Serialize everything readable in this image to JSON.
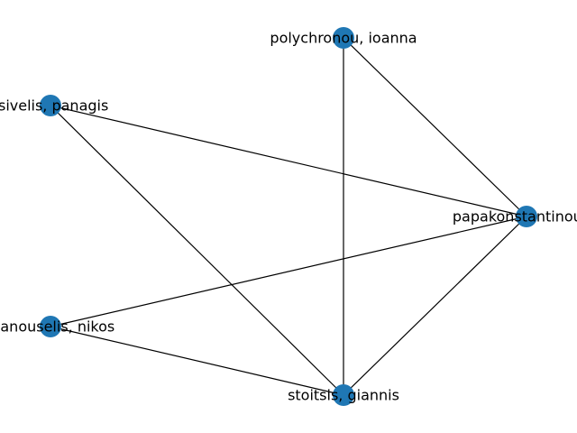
{
  "graph": {
    "node_color": "#1f77b4",
    "edge_color": "#000000",
    "nodes": [
      {
        "id": "polychronou",
        "label": "polychronou, ioanna"
      },
      {
        "id": "tsivelis",
        "label": "tsivelis, panagis"
      },
      {
        "id": "papakonstantinou",
        "label": "papakonstantinou, n"
      },
      {
        "id": "manouselis",
        "label": "manouselis, nikos"
      },
      {
        "id": "stoitsis",
        "label": "stoitsis, giannis"
      }
    ],
    "edges": [
      {
        "source": "polychronou",
        "target": "stoitsis"
      },
      {
        "source": "polychronou",
        "target": "papakonstantinou"
      },
      {
        "source": "tsivelis",
        "target": "papakonstantinou"
      },
      {
        "source": "tsivelis",
        "target": "stoitsis"
      },
      {
        "source": "manouselis",
        "target": "papakonstantinou"
      },
      {
        "source": "manouselis",
        "target": "stoitsis"
      },
      {
        "source": "papakonstantinou",
        "target": "stoitsis"
      }
    ]
  }
}
